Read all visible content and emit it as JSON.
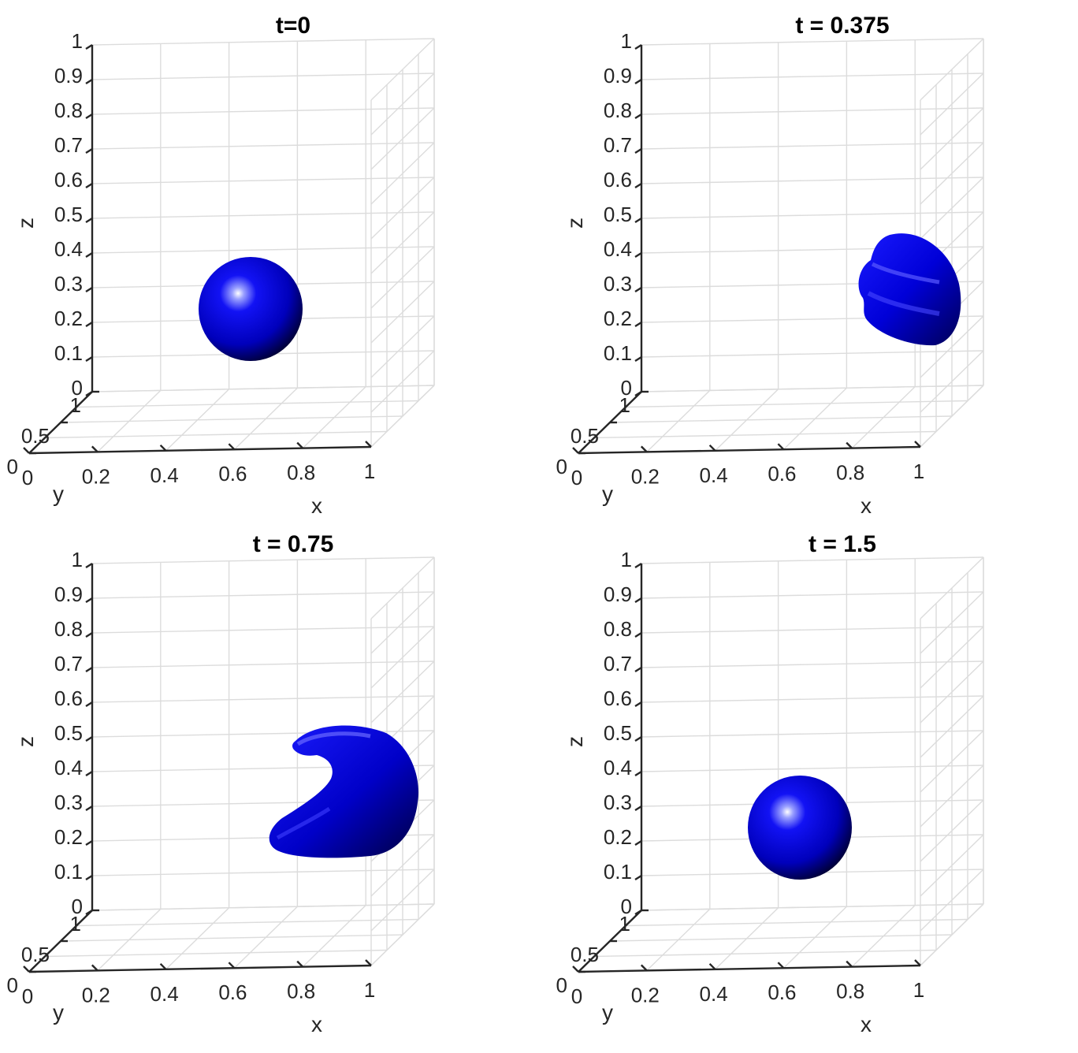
{
  "chart_data": [
    {
      "type": "isosurface-3d",
      "title": "t=0",
      "xlabel": "x",
      "ylabel": "y",
      "zlabel": "z",
      "xlim": [
        0,
        1
      ],
      "ylim": [
        0,
        1
      ],
      "zlim": [
        0,
        1
      ],
      "x_ticks": [
        "0",
        "0.2",
        "0.4",
        "0.6",
        "0.8",
        "1"
      ],
      "y_ticks": [
        "0",
        "0.5",
        "1"
      ],
      "z_ticks": [
        "0",
        "0.1",
        "0.2",
        "0.3",
        "0.4",
        "0.5",
        "0.6",
        "0.7",
        "0.8",
        "0.9",
        "1"
      ],
      "grid": true,
      "surface_color": "#0000ff",
      "shape": {
        "kind": "sphere",
        "center": [
          0.35,
          0.75,
          0.25
        ],
        "radius": 0.15
      }
    },
    {
      "type": "isosurface-3d",
      "title": "t = 0.375",
      "xlabel": "x",
      "ylabel": "y",
      "zlabel": "z",
      "xlim": [
        0,
        1
      ],
      "ylim": [
        0,
        1
      ],
      "zlim": [
        0,
        1
      ],
      "x_ticks": [
        "0",
        "0.2",
        "0.4",
        "0.6",
        "0.8",
        "1"
      ],
      "y_ticks": [
        "0",
        "0.5",
        "1"
      ],
      "z_ticks": [
        "0",
        "0.1",
        "0.2",
        "0.3",
        "0.4",
        "0.5",
        "0.6",
        "0.7",
        "0.8",
        "0.9",
        "1"
      ],
      "grid": true,
      "surface_color": "#0000ff",
      "shape": {
        "kind": "stretched-blob",
        "center": [
          0.65,
          0.75,
          0.3
        ]
      }
    },
    {
      "type": "isosurface-3d",
      "title": "t = 0.75",
      "xlabel": "x",
      "ylabel": "y",
      "zlabel": "z",
      "xlim": [
        0,
        1
      ],
      "ylim": [
        0,
        1
      ],
      "zlim": [
        0,
        1
      ],
      "x_ticks": [
        "0",
        "0.2",
        "0.4",
        "0.6",
        "0.8",
        "1"
      ],
      "y_ticks": [
        "0",
        "0.5",
        "1"
      ],
      "z_ticks": [
        "0",
        "0.1",
        "0.2",
        "0.3",
        "0.4",
        "0.5",
        "0.6",
        "0.7",
        "0.8",
        "0.9",
        "1"
      ],
      "grid": true,
      "surface_color": "#0000ff",
      "shape": {
        "kind": "crescent",
        "center": [
          0.55,
          0.75,
          0.35
        ]
      }
    },
    {
      "type": "isosurface-3d",
      "title": "t = 1.5",
      "xlabel": "x",
      "ylabel": "y",
      "zlabel": "z",
      "xlim": [
        0,
        1
      ],
      "ylim": [
        0,
        1
      ],
      "zlim": [
        0,
        1
      ],
      "x_ticks": [
        "0",
        "0.2",
        "0.4",
        "0.6",
        "0.8",
        "1"
      ],
      "y_ticks": [
        "0",
        "0.5",
        "1"
      ],
      "z_ticks": [
        "0",
        "0.1",
        "0.2",
        "0.3",
        "0.4",
        "0.5",
        "0.6",
        "0.7",
        "0.8",
        "0.9",
        "1"
      ],
      "grid": true,
      "surface_color": "#0000ff",
      "shape": {
        "kind": "sphere",
        "center": [
          0.35,
          0.75,
          0.25
        ],
        "radius": 0.15
      }
    }
  ]
}
